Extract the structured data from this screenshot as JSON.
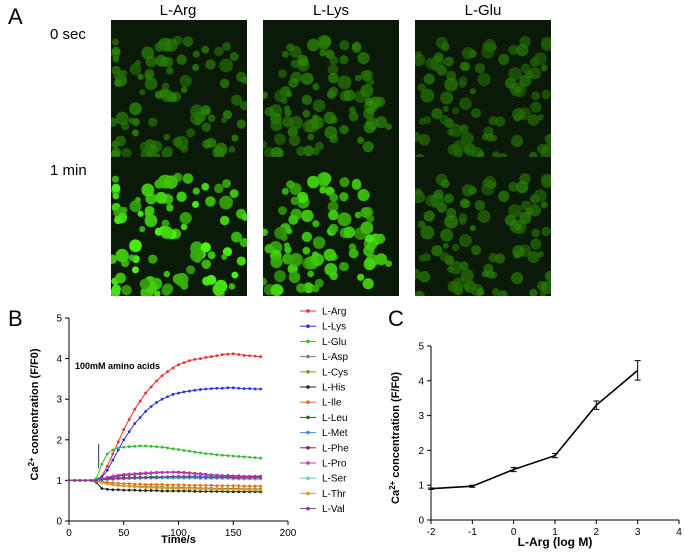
{
  "panel_a": {
    "letter": "A",
    "columns": [
      "L-Arg",
      "L-Lys",
      "L-Glu"
    ],
    "rows": [
      "0 sec",
      "1 min"
    ],
    "brightness": [
      [
        0.45,
        0.45,
        0.35
      ],
      [
        1.0,
        0.9,
        0.4
      ]
    ]
  },
  "panel_b": {
    "letter": "B"
  },
  "panel_c": {
    "letter": "C"
  },
  "colors": {
    "L-Arg": "#e8312a",
    "L-Lys": "#2a35d6",
    "L-Glu": "#2fbf2f",
    "L-Asp": "#808080",
    "L-Cys": "#9a8a2a",
    "L-His": "#222222",
    "L-Ile": "#e86a1a",
    "L-Leu": "#1f6e1f",
    "L-Met": "#3a8fd6",
    "L-Phe": "#7a2a5a",
    "L-Pro": "#cc33cc",
    "L-Ser": "#66cccc",
    "L-Thr": "#d2a020",
    "L-Val": "#8a3a8a"
  },
  "chart_data": [
    {
      "type": "line",
      "ylabel_main": "Ca",
      "ylabel_sup": "2+",
      "ylabel_rest": " concentration (F/F0)",
      "xlabel": "Time/s",
      "annotation": "100mM amino acids",
      "xlim": [
        0,
        200
      ],
      "ylim": [
        0,
        5
      ],
      "xticks": [
        0,
        50,
        100,
        150,
        200
      ],
      "yticks": [
        0,
        1,
        2,
        3,
        4,
        5
      ],
      "legend_position": "right",
      "x": [
        0,
        5,
        10,
        15,
        20,
        25,
        30,
        35,
        40,
        45,
        50,
        55,
        60,
        65,
        70,
        75,
        80,
        85,
        90,
        95,
        100,
        105,
        110,
        115,
        120,
        125,
        130,
        135,
        140,
        145,
        150,
        155,
        160,
        165,
        170,
        175
      ],
      "series": [
        {
          "name": "L-Arg",
          "values": [
            1,
            1,
            1,
            1,
            1,
            1.02,
            1.1,
            1.35,
            1.65,
            1.95,
            2.25,
            2.5,
            2.75,
            2.95,
            3.15,
            3.3,
            3.45,
            3.58,
            3.68,
            3.77,
            3.85,
            3.9,
            3.95,
            3.98,
            4.0,
            4.03,
            4.05,
            4.07,
            4.1,
            4.11,
            4.12,
            4.1,
            4.08,
            4.07,
            4.06,
            4.05
          ]
        },
        {
          "name": "L-Lys",
          "values": [
            1,
            1,
            1,
            1,
            1,
            1.02,
            1.08,
            1.25,
            1.5,
            1.75,
            2.0,
            2.2,
            2.4,
            2.55,
            2.7,
            2.82,
            2.92,
            3.0,
            3.06,
            3.12,
            3.15,
            3.18,
            3.2,
            3.22,
            3.24,
            3.25,
            3.26,
            3.27,
            3.27,
            3.28,
            3.28,
            3.27,
            3.26,
            3.26,
            3.25,
            3.25
          ]
        },
        {
          "name": "L-Glu",
          "values": [
            1,
            1,
            1,
            1,
            1,
            1.05,
            1.4,
            1.65,
            1.75,
            1.8,
            1.82,
            1.83,
            1.84,
            1.85,
            1.85,
            1.84,
            1.83,
            1.82,
            1.8,
            1.78,
            1.76,
            1.74,
            1.72,
            1.7,
            1.68,
            1.66,
            1.65,
            1.63,
            1.62,
            1.61,
            1.6,
            1.59,
            1.58,
            1.57,
            1.56,
            1.55
          ]
        },
        {
          "name": "L-Asp",
          "values": [
            1,
            1,
            1,
            1,
            1,
            1,
            1.02,
            1.05,
            1.08,
            1.1,
            1.12,
            1.13,
            1.14,
            1.15,
            1.16,
            1.17,
            1.18,
            1.19,
            1.2,
            1.21,
            1.21,
            1.2,
            1.19,
            1.18,
            1.17,
            1.15,
            1.14,
            1.13,
            1.12,
            1.12,
            1.11,
            1.11,
            1.1,
            1.1,
            1.1,
            1.1
          ]
        },
        {
          "name": "L-Cys",
          "values": [
            1,
            1,
            1,
            1,
            1,
            0.98,
            0.95,
            0.92,
            0.9,
            0.88,
            0.87,
            0.86,
            0.86,
            0.85,
            0.85,
            0.84,
            0.84,
            0.84,
            0.83,
            0.83,
            0.83,
            0.82,
            0.82,
            0.82,
            0.81,
            0.81,
            0.81,
            0.8,
            0.8,
            0.8,
            0.8,
            0.8,
            0.79,
            0.79,
            0.79,
            0.79
          ]
        },
        {
          "name": "L-His",
          "values": [
            1,
            1,
            1,
            1,
            1,
            0.95,
            0.8,
            0.78,
            0.77,
            0.77,
            0.76,
            0.76,
            0.76,
            0.75,
            0.75,
            0.75,
            0.75,
            0.74,
            0.74,
            0.74,
            0.74,
            0.74,
            0.74,
            0.73,
            0.73,
            0.73,
            0.73,
            0.73,
            0.73,
            0.72,
            0.72,
            0.72,
            0.72,
            0.72,
            0.72,
            0.72
          ]
        },
        {
          "name": "L-Ile",
          "values": [
            1,
            1,
            1,
            1,
            1,
            0.99,
            0.97,
            0.95,
            0.94,
            0.93,
            0.92,
            0.92,
            0.91,
            0.91,
            0.9,
            0.9,
            0.9,
            0.9,
            0.89,
            0.89,
            0.89,
            0.89,
            0.88,
            0.88,
            0.88,
            0.88,
            0.88,
            0.87,
            0.87,
            0.87,
            0.87,
            0.87,
            0.86,
            0.86,
            0.86,
            0.86
          ]
        },
        {
          "name": "L-Leu",
          "values": [
            1,
            1,
            1,
            1,
            1,
            1,
            1.02,
            1.04,
            1.05,
            1.06,
            1.07,
            1.07,
            1.08,
            1.08,
            1.08,
            1.09,
            1.09,
            1.09,
            1.09,
            1.1,
            1.1,
            1.1,
            1.1,
            1.1,
            1.1,
            1.1,
            1.09,
            1.09,
            1.09,
            1.09,
            1.08,
            1.08,
            1.08,
            1.08,
            1.08,
            1.08
          ]
        },
        {
          "name": "L-Met",
          "values": [
            1,
            1,
            1,
            1,
            1,
            1,
            1.01,
            1.02,
            1.03,
            1.04,
            1.05,
            1.05,
            1.06,
            1.06,
            1.07,
            1.07,
            1.08,
            1.08,
            1.08,
            1.09,
            1.09,
            1.09,
            1.09,
            1.1,
            1.1,
            1.1,
            1.1,
            1.1,
            1.1,
            1.1,
            1.1,
            1.1,
            1.09,
            1.09,
            1.09,
            1.09
          ]
        },
        {
          "name": "L-Phe",
          "values": [
            1,
            1,
            1,
            1,
            1,
            1,
            1.03,
            1.06,
            1.09,
            1.11,
            1.13,
            1.15,
            1.16,
            1.17,
            1.18,
            1.19,
            1.2,
            1.2,
            1.2,
            1.2,
            1.2,
            1.19,
            1.18,
            1.17,
            1.16,
            1.15,
            1.14,
            1.13,
            1.12,
            1.12,
            1.11,
            1.11,
            1.1,
            1.1,
            1.1,
            1.1
          ]
        },
        {
          "name": "L-Pro",
          "values": [
            1,
            1,
            1,
            1,
            1,
            1,
            1.04,
            1.08,
            1.11,
            1.13,
            1.15,
            1.16,
            1.17,
            1.18,
            1.19,
            1.19,
            1.2,
            1.2,
            1.2,
            1.2,
            1.19,
            1.18,
            1.17,
            1.16,
            1.15,
            1.14,
            1.13,
            1.12,
            1.11,
            1.1,
            1.1,
            1.09,
            1.09,
            1.08,
            1.08,
            1.08
          ]
        },
        {
          "name": "L-Ser",
          "values": [
            1,
            1,
            1,
            1,
            1,
            1,
            1.01,
            1.02,
            1.02,
            1.03,
            1.03,
            1.04,
            1.04,
            1.04,
            1.05,
            1.05,
            1.05,
            1.05,
            1.05,
            1.05,
            1.05,
            1.05,
            1.05,
            1.05,
            1.04,
            1.04,
            1.04,
            1.04,
            1.04,
            1.04,
            1.03,
            1.03,
            1.03,
            1.03,
            1.03,
            1.03
          ]
        },
        {
          "name": "L-Thr",
          "values": [
            1,
            1,
            1,
            1,
            1,
            0.98,
            0.94,
            0.91,
            0.89,
            0.87,
            0.86,
            0.85,
            0.84,
            0.83,
            0.82,
            0.82,
            0.81,
            0.81,
            0.8,
            0.8,
            0.8,
            0.79,
            0.79,
            0.79,
            0.78,
            0.78,
            0.78,
            0.78,
            0.77,
            0.77,
            0.77,
            0.77,
            0.77,
            0.76,
            0.76,
            0.76
          ]
        },
        {
          "name": "L-Val",
          "values": [
            1,
            1,
            1,
            1,
            1,
            1,
            1.02,
            1.03,
            1.04,
            1.05,
            1.05,
            1.06,
            1.06,
            1.07,
            1.07,
            1.07,
            1.07,
            1.08,
            1.08,
            1.08,
            1.08,
            1.08,
            1.08,
            1.08,
            1.07,
            1.07,
            1.07,
            1.07,
            1.07,
            1.07,
            1.06,
            1.06,
            1.06,
            1.06,
            1.06,
            1.06
          ]
        }
      ]
    },
    {
      "type": "line",
      "ylabel_main": "Ca",
      "ylabel_sup": "2+",
      "ylabel_rest": " concentration (F/F0)",
      "xlabel": "L-Arg (log M)",
      "xlim": [
        -2,
        4
      ],
      "ylim": [
        0,
        5
      ],
      "xticks": [
        -2,
        -1,
        0,
        1,
        2,
        3,
        4
      ],
      "yticks": [
        0,
        1,
        2,
        3,
        4,
        5
      ],
      "x": [
        -2,
        -1,
        0,
        1,
        2,
        3
      ],
      "values": [
        0.9,
        0.97,
        1.45,
        1.85,
        3.3,
        4.3
      ],
      "errors": [
        0.02,
        0.03,
        0.06,
        0.06,
        0.12,
        0.28
      ]
    }
  ]
}
